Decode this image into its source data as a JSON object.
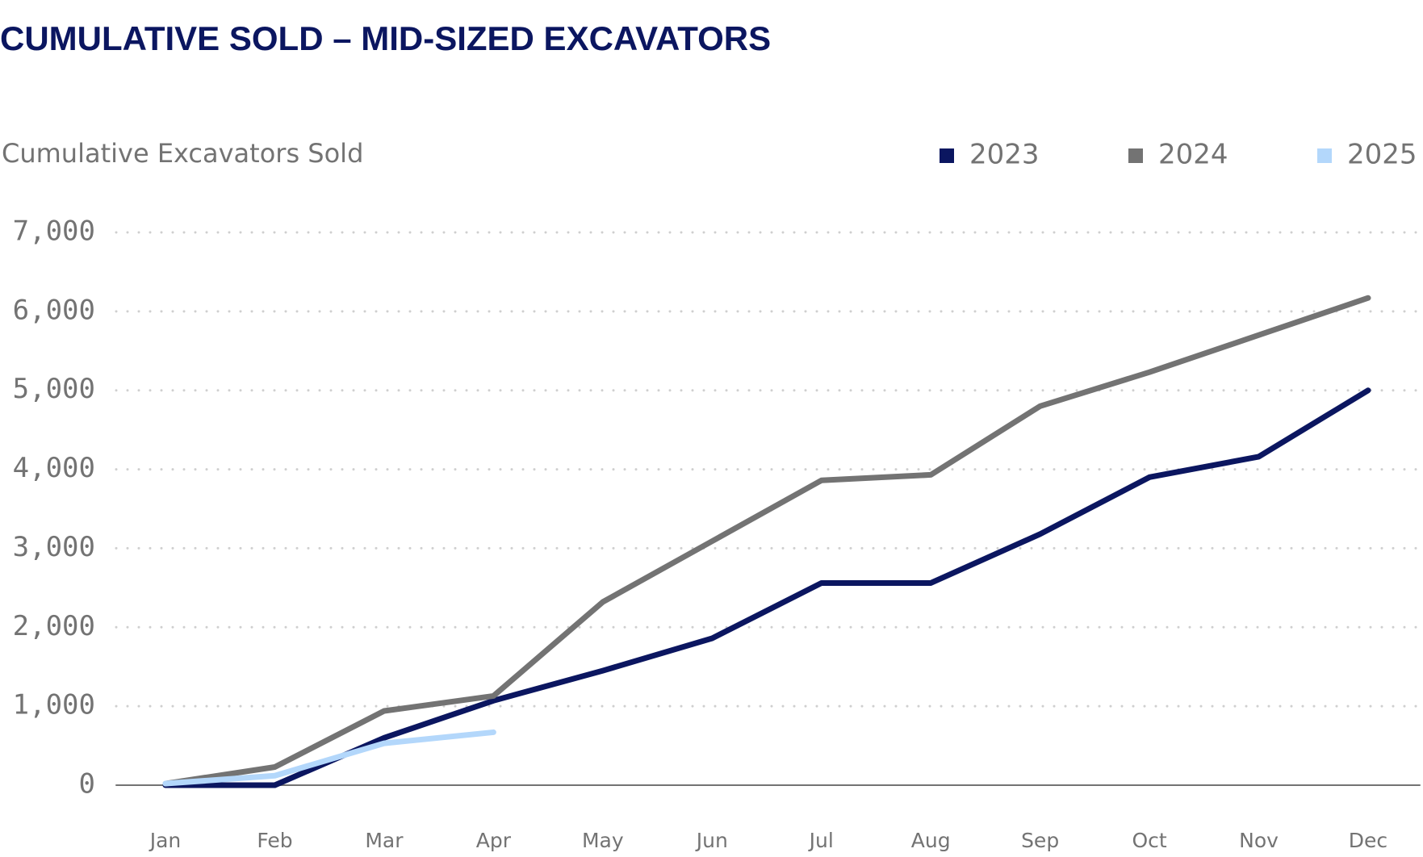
{
  "chart_data": {
    "type": "line",
    "title": "CUMULATIVE SOLD – MID-SIZED EXCAVATORS",
    "y_label": "Cumulative Excavators Sold",
    "categories": [
      "Jan",
      "Feb",
      "Mar",
      "Apr",
      "May",
      "Jun",
      "Jul",
      "Aug",
      "Sep",
      "Oct",
      "Nov",
      "Dec"
    ],
    "series": [
      {
        "name": "2023",
        "color": "#0b1660",
        "values": [
          0,
          0,
          600,
          1070,
          1450,
          1860,
          2560,
          2560,
          3180,
          3900,
          4160,
          5000
        ]
      },
      {
        "name": "2024",
        "color": "#737373",
        "values": [
          20,
          230,
          940,
          1130,
          2320,
          3090,
          3860,
          3930,
          4800,
          5230,
          5700,
          6170
        ]
      },
      {
        "name": "2025",
        "color": "#b3d7fb",
        "values": [
          20,
          120,
          530,
          670,
          null,
          null,
          null,
          null,
          null,
          null,
          null,
          null
        ]
      }
    ],
    "ylim": [
      0,
      7000
    ],
    "yticks": [
      0,
      {
        "value": 1000,
        "label": "1,000"
      },
      {
        "value": 2000,
        "label": "2,000"
      },
      {
        "value": 3000,
        "label": "3,000"
      },
      {
        "value": 4000,
        "label": "4,000"
      },
      {
        "value": 5000,
        "label": "5,000"
      },
      {
        "value": 6000,
        "label": "6,000"
      },
      {
        "value": 7000,
        "label": "7,000"
      }
    ],
    "grid": true,
    "legend": "top-right"
  }
}
